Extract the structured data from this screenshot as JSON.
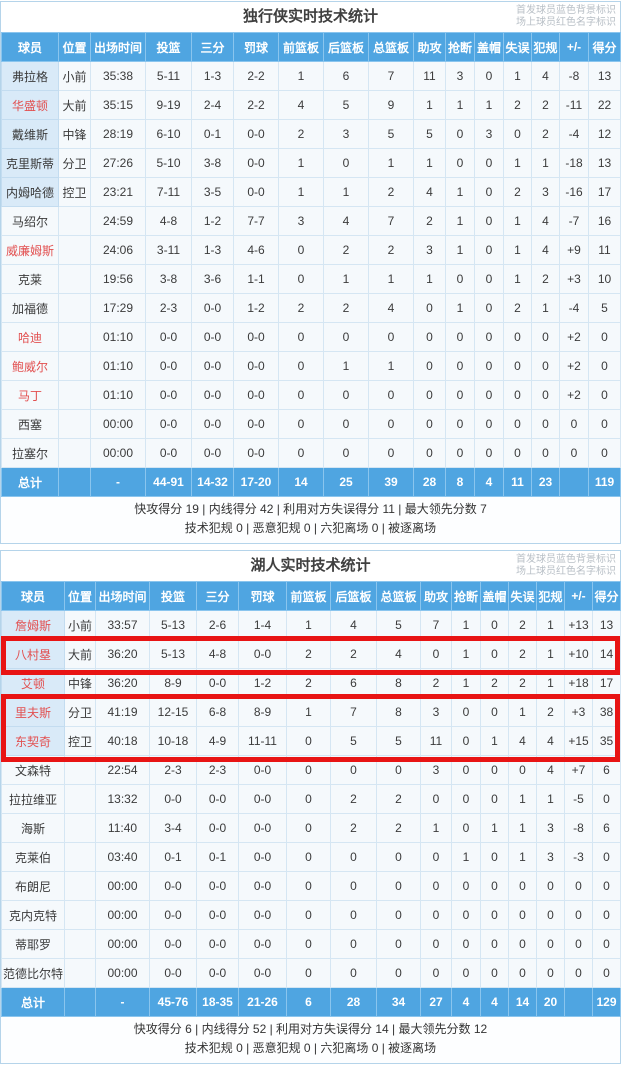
{
  "legend": {
    "starter_note": "首发球员蓝色背景标识",
    "oncourt_note": "场上球员红色名字标识"
  },
  "columns": [
    "球员",
    "位置",
    "出场时间",
    "投篮",
    "三分",
    "罚球",
    "前篮板",
    "后篮板",
    "总篮板",
    "助攻",
    "抢断",
    "盖帽",
    "失误",
    "犯规",
    "+/-",
    "得分"
  ],
  "totals_label": "总计",
  "colors": {
    "header_blue": "#4FA5E1",
    "starter_bg": "#D9EAF8",
    "oncourt_red": "#E25050",
    "highlight_red": "#E81414"
  },
  "tables": [
    {
      "title": "独行侠实时技术统计",
      "players": [
        {
          "name": "弗拉格",
          "pos": "小前",
          "starter": true,
          "oncourt": false,
          "stats": [
            "35:38",
            "5-11",
            "1-3",
            "2-2",
            "1",
            "6",
            "7",
            "11",
            "3",
            "0",
            "1",
            "4",
            "-8",
            "13"
          ]
        },
        {
          "name": "华盛顿",
          "pos": "大前",
          "starter": true,
          "oncourt": true,
          "stats": [
            "35:15",
            "9-19",
            "2-4",
            "2-2",
            "4",
            "5",
            "9",
            "1",
            "1",
            "1",
            "2",
            "2",
            "-11",
            "22"
          ]
        },
        {
          "name": "戴维斯",
          "pos": "中锋",
          "starter": true,
          "oncourt": false,
          "stats": [
            "28:19",
            "6-10",
            "0-1",
            "0-0",
            "2",
            "3",
            "5",
            "5",
            "0",
            "3",
            "0",
            "2",
            "-4",
            "12"
          ]
        },
        {
          "name": "克里斯蒂",
          "pos": "分卫",
          "starter": true,
          "oncourt": false,
          "stats": [
            "27:26",
            "5-10",
            "3-8",
            "0-0",
            "1",
            "0",
            "1",
            "1",
            "0",
            "0",
            "1",
            "1",
            "-18",
            "13"
          ]
        },
        {
          "name": "内姆哈德",
          "pos": "控卫",
          "starter": true,
          "oncourt": false,
          "stats": [
            "23:21",
            "7-11",
            "3-5",
            "0-0",
            "1",
            "1",
            "2",
            "4",
            "1",
            "0",
            "2",
            "3",
            "-16",
            "17"
          ]
        },
        {
          "name": "马绍尔",
          "pos": "",
          "starter": false,
          "oncourt": false,
          "stats": [
            "24:59",
            "4-8",
            "1-2",
            "7-7",
            "3",
            "4",
            "7",
            "2",
            "1",
            "0",
            "1",
            "4",
            "-7",
            "16"
          ]
        },
        {
          "name": "威廉姆斯",
          "pos": "",
          "starter": false,
          "oncourt": true,
          "stats": [
            "24:06",
            "3-11",
            "1-3",
            "4-6",
            "0",
            "2",
            "2",
            "3",
            "1",
            "0",
            "1",
            "4",
            "+9",
            "11"
          ]
        },
        {
          "name": "克莱",
          "pos": "",
          "starter": false,
          "oncourt": false,
          "stats": [
            "19:56",
            "3-8",
            "3-6",
            "1-1",
            "0",
            "1",
            "1",
            "1",
            "0",
            "0",
            "1",
            "2",
            "+3",
            "10"
          ]
        },
        {
          "name": "加福德",
          "pos": "",
          "starter": false,
          "oncourt": false,
          "stats": [
            "17:29",
            "2-3",
            "0-0",
            "1-2",
            "2",
            "2",
            "4",
            "0",
            "1",
            "0",
            "2",
            "1",
            "-4",
            "5"
          ]
        },
        {
          "name": "哈迪",
          "pos": "",
          "starter": false,
          "oncourt": true,
          "stats": [
            "01:10",
            "0-0",
            "0-0",
            "0-0",
            "0",
            "0",
            "0",
            "0",
            "0",
            "0",
            "0",
            "0",
            "+2",
            "0"
          ]
        },
        {
          "name": "鲍威尔",
          "pos": "",
          "starter": false,
          "oncourt": true,
          "stats": [
            "01:10",
            "0-0",
            "0-0",
            "0-0",
            "0",
            "1",
            "1",
            "0",
            "0",
            "0",
            "0",
            "0",
            "+2",
            "0"
          ]
        },
        {
          "name": "马丁",
          "pos": "",
          "starter": false,
          "oncourt": true,
          "stats": [
            "01:10",
            "0-0",
            "0-0",
            "0-0",
            "0",
            "0",
            "0",
            "0",
            "0",
            "0",
            "0",
            "0",
            "+2",
            "0"
          ]
        },
        {
          "name": "西塞",
          "pos": "",
          "starter": false,
          "oncourt": false,
          "stats": [
            "00:00",
            "0-0",
            "0-0",
            "0-0",
            "0",
            "0",
            "0",
            "0",
            "0",
            "0",
            "0",
            "0",
            "0",
            "0"
          ]
        },
        {
          "name": "拉塞尔",
          "pos": "",
          "starter": false,
          "oncourt": false,
          "stats": [
            "00:00",
            "0-0",
            "0-0",
            "0-0",
            "0",
            "0",
            "0",
            "0",
            "0",
            "0",
            "0",
            "0",
            "0",
            "0"
          ]
        }
      ],
      "totals": [
        "-",
        "44-91",
        "14-32",
        "17-20",
        "14",
        "25",
        "39",
        "28",
        "8",
        "4",
        "11",
        "23",
        "",
        "119"
      ],
      "footer_scoring": "快攻得分 19 | 内线得分 42 | 利用对方失误得分 11 | 最大领先分数 7",
      "footer_fouls": "技术犯规 0 | 恶意犯规 0 | 六犯离场 0 | 被逐离场",
      "highlight_rows": []
    },
    {
      "title": "湖人实时技术统计",
      "players": [
        {
          "name": "詹姆斯",
          "pos": "小前",
          "starter": true,
          "oncourt": true,
          "stats": [
            "33:57",
            "5-13",
            "2-6",
            "1-4",
            "1",
            "4",
            "5",
            "7",
            "1",
            "0",
            "2",
            "1",
            "+13",
            "13"
          ]
        },
        {
          "name": "八村塁",
          "pos": "大前",
          "starter": true,
          "oncourt": true,
          "stats": [
            "36:20",
            "5-13",
            "4-8",
            "0-0",
            "2",
            "2",
            "4",
            "0",
            "1",
            "0",
            "2",
            "1",
            "+10",
            "14"
          ]
        },
        {
          "name": "艾顿",
          "pos": "中锋",
          "starter": true,
          "oncourt": true,
          "stats": [
            "36:20",
            "8-9",
            "0-0",
            "1-2",
            "2",
            "6",
            "8",
            "2",
            "1",
            "2",
            "2",
            "1",
            "+18",
            "17"
          ]
        },
        {
          "name": "里夫斯",
          "pos": "分卫",
          "starter": true,
          "oncourt": true,
          "stats": [
            "41:19",
            "12-15",
            "6-8",
            "8-9",
            "1",
            "7",
            "8",
            "3",
            "0",
            "0",
            "1",
            "2",
            "+3",
            "38"
          ]
        },
        {
          "name": "东契奇",
          "pos": "控卫",
          "starter": true,
          "oncourt": true,
          "stats": [
            "40:18",
            "10-18",
            "4-9",
            "11-11",
            "0",
            "5",
            "5",
            "11",
            "0",
            "1",
            "4",
            "4",
            "+15",
            "35"
          ]
        },
        {
          "name": "文森特",
          "pos": "",
          "starter": false,
          "oncourt": false,
          "stats": [
            "22:54",
            "2-3",
            "2-3",
            "0-0",
            "0",
            "0",
            "0",
            "3",
            "0",
            "0",
            "0",
            "4",
            "+7",
            "6"
          ]
        },
        {
          "name": "拉拉维亚",
          "pos": "",
          "starter": false,
          "oncourt": false,
          "stats": [
            "13:32",
            "0-0",
            "0-0",
            "0-0",
            "0",
            "2",
            "2",
            "0",
            "0",
            "0",
            "1",
            "1",
            "-5",
            "0"
          ]
        },
        {
          "name": "海斯",
          "pos": "",
          "starter": false,
          "oncourt": false,
          "stats": [
            "11:40",
            "3-4",
            "0-0",
            "0-0",
            "0",
            "2",
            "2",
            "1",
            "0",
            "1",
            "1",
            "3",
            "-8",
            "6"
          ]
        },
        {
          "name": "克莱伯",
          "pos": "",
          "starter": false,
          "oncourt": false,
          "stats": [
            "03:40",
            "0-1",
            "0-1",
            "0-0",
            "0",
            "0",
            "0",
            "0",
            "1",
            "0",
            "1",
            "3",
            "-3",
            "0"
          ]
        },
        {
          "name": "布朗尼",
          "pos": "",
          "starter": false,
          "oncourt": false,
          "stats": [
            "00:00",
            "0-0",
            "0-0",
            "0-0",
            "0",
            "0",
            "0",
            "0",
            "0",
            "0",
            "0",
            "0",
            "0",
            "0"
          ]
        },
        {
          "name": "克内克特",
          "pos": "",
          "starter": false,
          "oncourt": false,
          "stats": [
            "00:00",
            "0-0",
            "0-0",
            "0-0",
            "0",
            "0",
            "0",
            "0",
            "0",
            "0",
            "0",
            "0",
            "0",
            "0"
          ]
        },
        {
          "name": "蒂耶罗",
          "pos": "",
          "starter": false,
          "oncourt": false,
          "stats": [
            "00:00",
            "0-0",
            "0-0",
            "0-0",
            "0",
            "0",
            "0",
            "0",
            "0",
            "0",
            "0",
            "0",
            "0",
            "0"
          ]
        },
        {
          "name": "范德比尔特",
          "pos": "",
          "starter": false,
          "oncourt": false,
          "stats": [
            "00:00",
            "0-0",
            "0-0",
            "0-0",
            "0",
            "0",
            "0",
            "0",
            "0",
            "0",
            "0",
            "0",
            "0",
            "0"
          ]
        }
      ],
      "totals": [
        "-",
        "45-76",
        "18-35",
        "21-26",
        "6",
        "28",
        "34",
        "27",
        "4",
        "4",
        "14",
        "20",
        "",
        "129"
      ],
      "footer_scoring": "快攻得分 6 | 内线得分 52 | 利用对方失误得分 14 | 最大领先分数 12",
      "footer_fouls": "技术犯规 0 | 恶意犯规 0 | 六犯离场 0 | 被逐离场",
      "highlight_rows": [
        [
          1,
          1
        ],
        [
          3,
          4
        ]
      ]
    }
  ]
}
